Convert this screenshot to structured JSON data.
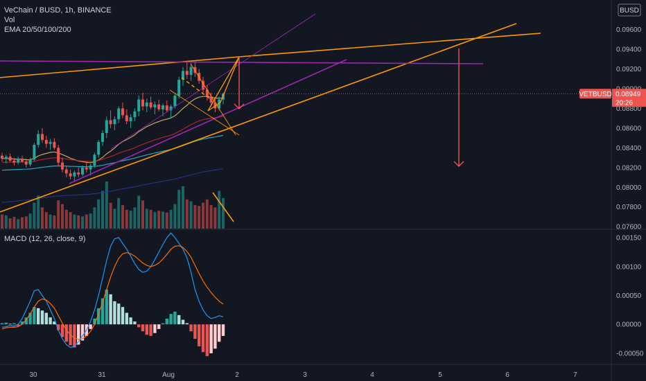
{
  "header": {
    "title": "VeChain / BUSD, 1h, BINANCE",
    "vol_label": "Vol",
    "ema_label": "EMA 20/50/100/200"
  },
  "currency_badge": "BUSD",
  "price_badge": {
    "symbol": "VETBUSD",
    "value": "0.08949",
    "countdown": "20:26"
  },
  "macd": {
    "label": "MACD (12, 26, close, 9)"
  },
  "colors": {
    "background": "#131722",
    "up": "#26a69a",
    "down": "#ef5350",
    "orange": "#ff9800",
    "magenta": "#9c27b0",
    "macd_line": "#2196f3",
    "signal_line": "#ff6d00",
    "ema20": "#e8c064",
    "ema50": "#c62828",
    "ema100": "#26c6da",
    "ema200": "#283593"
  },
  "chart_data": [
    {
      "type": "candlestick",
      "title": "",
      "y_ticks": [
        "0.09600",
        "0.09400",
        "0.09200",
        "0.09000",
        "0.08800",
        "0.08600",
        "0.08400",
        "0.08200",
        "0.08000",
        "0.07800",
        "0.07600"
      ],
      "ylim": [
        0.0758,
        0.099
      ],
      "x_ticks": [
        "30",
        "31",
        "Aug",
        "2",
        "3",
        "4",
        "5",
        "6",
        "7"
      ],
      "last_price": 0.08949,
      "candles": [
        [
          0.0832,
          0.0835,
          0.0826,
          0.0829
        ],
        [
          0.0829,
          0.0833,
          0.0824,
          0.0831
        ],
        [
          0.0831,
          0.0834,
          0.0826,
          0.0827
        ],
        [
          0.0827,
          0.083,
          0.0822,
          0.0825
        ],
        [
          0.0825,
          0.0831,
          0.0823,
          0.0829
        ],
        [
          0.0829,
          0.0832,
          0.0825,
          0.0826
        ],
        [
          0.0826,
          0.0829,
          0.082,
          0.0823
        ],
        [
          0.0823,
          0.083,
          0.0821,
          0.0828
        ],
        [
          0.0828,
          0.0845,
          0.0826,
          0.0843
        ],
        [
          0.0843,
          0.0858,
          0.084,
          0.0854
        ],
        [
          0.0854,
          0.086,
          0.0845,
          0.0848
        ],
        [
          0.0848,
          0.0852,
          0.084,
          0.0844
        ],
        [
          0.0844,
          0.0849,
          0.0838,
          0.0846
        ],
        [
          0.0846,
          0.085,
          0.0838,
          0.084
        ],
        [
          0.084,
          0.0843,
          0.0822,
          0.0825
        ],
        [
          0.0825,
          0.083,
          0.0815,
          0.0818
        ],
        [
          0.0818,
          0.0822,
          0.081,
          0.0814
        ],
        [
          0.0814,
          0.0818,
          0.0808,
          0.0811
        ],
        [
          0.0811,
          0.0817,
          0.0806,
          0.0815
        ],
        [
          0.0815,
          0.082,
          0.081,
          0.0813
        ],
        [
          0.0813,
          0.0822,
          0.0811,
          0.082
        ],
        [
          0.082,
          0.0826,
          0.0815,
          0.0818
        ],
        [
          0.0818,
          0.0824,
          0.0812,
          0.0822
        ],
        [
          0.0822,
          0.0835,
          0.082,
          0.0833
        ],
        [
          0.0833,
          0.0848,
          0.083,
          0.0846
        ],
        [
          0.0846,
          0.0858,
          0.0842,
          0.0855
        ],
        [
          0.0855,
          0.0872,
          0.085,
          0.0868
        ],
        [
          0.0868,
          0.0878,
          0.086,
          0.0864
        ],
        [
          0.0864,
          0.0872,
          0.0858,
          0.0869
        ],
        [
          0.0869,
          0.0882,
          0.0865,
          0.088
        ],
        [
          0.088,
          0.0886,
          0.087,
          0.0873
        ],
        [
          0.0873,
          0.0879,
          0.0864,
          0.0867
        ],
        [
          0.0867,
          0.0874,
          0.086,
          0.0871
        ],
        [
          0.0871,
          0.088,
          0.0867,
          0.0877
        ],
        [
          0.0877,
          0.0893,
          0.0872,
          0.0889
        ],
        [
          0.0889,
          0.0896,
          0.0878,
          0.0882
        ],
        [
          0.0882,
          0.089,
          0.0876,
          0.0886
        ],
        [
          0.0886,
          0.0892,
          0.0879,
          0.0881
        ],
        [
          0.0881,
          0.0887,
          0.0874,
          0.0884
        ],
        [
          0.0884,
          0.0889,
          0.0877,
          0.0879
        ],
        [
          0.0879,
          0.0885,
          0.0872,
          0.0883
        ],
        [
          0.0883,
          0.0888,
          0.0876,
          0.0878
        ],
        [
          0.0878,
          0.0884,
          0.087,
          0.0882
        ],
        [
          0.0882,
          0.0896,
          0.088,
          0.0893
        ],
        [
          0.0893,
          0.0912,
          0.089,
          0.0909
        ],
        [
          0.0909,
          0.0922,
          0.0903,
          0.0918
        ],
        [
          0.0918,
          0.0928,
          0.091,
          0.0914
        ],
        [
          0.0914,
          0.0926,
          0.0908,
          0.0922
        ],
        [
          0.0922,
          0.0927,
          0.0912,
          0.0916
        ],
        [
          0.0916,
          0.092,
          0.0905,
          0.0908
        ],
        [
          0.0908,
          0.0912,
          0.0896,
          0.0899
        ],
        [
          0.0899,
          0.0904,
          0.0888,
          0.0892
        ],
        [
          0.0892,
          0.0896,
          0.0882,
          0.0886
        ],
        [
          0.0886,
          0.089,
          0.0876,
          0.088
        ],
        [
          0.088,
          0.0892,
          0.0878,
          0.0889
        ],
        [
          0.0889,
          0.0896,
          0.0884,
          0.08949
        ]
      ],
      "volumes": [
        0.3,
        0.28,
        0.22,
        0.25,
        0.2,
        0.24,
        0.26,
        0.32,
        0.55,
        0.7,
        0.45,
        0.35,
        0.3,
        0.28,
        0.6,
        0.52,
        0.4,
        0.35,
        0.3,
        0.28,
        0.26,
        0.3,
        0.32,
        0.45,
        0.62,
        0.8,
        1.0,
        0.55,
        0.42,
        0.65,
        0.5,
        0.4,
        0.38,
        0.45,
        0.7,
        0.6,
        0.42,
        0.4,
        0.35,
        0.38,
        0.36,
        0.34,
        0.4,
        0.52,
        0.82,
        0.9,
        0.62,
        0.58,
        0.5,
        0.48,
        0.55,
        0.62,
        0.5,
        0.45,
        0.8,
        0.65
      ]
    },
    {
      "type": "macd",
      "title": "MACD (12, 26, close, 9)",
      "y_ticks": [
        "0.00150",
        "0.00100",
        "0.00050",
        "0.00000",
        "-0.00050"
      ],
      "ylim": [
        -0.00068,
        0.00162
      ],
      "histogram": [
        2e-05,
        3e-05,
        1e-05,
        2e-05,
        -3e-05,
        5e-05,
        0.00012,
        0.0002,
        0.0003,
        0.00028,
        0.00024,
        0.0002,
        0.00012,
        5e-05,
        -0.0001,
        -0.00022,
        -0.0003,
        -0.00036,
        -0.0004,
        -0.00035,
        -0.00028,
        -0.0002,
        -8e-05,
        0.0001,
        0.00028,
        0.00045,
        0.0006,
        0.00052,
        0.0004,
        0.00036,
        0.0003,
        0.0002,
        0.00012,
        5e-05,
        -5e-05,
        -0.00012,
        -0.00018,
        -0.0002,
        -0.00015,
        -8e-05,
        2e-05,
        0.0001,
        0.00018,
        0.00022,
        0.00016,
        8e-05,
        2e-05,
        -0.00012,
        -0.00025,
        -0.00038,
        -0.00048,
        -0.00055,
        -0.0005,
        -0.00042,
        -0.0003,
        -0.0002
      ],
      "macd_line": [
        -5e-05,
        -4e-05,
        -2e-05,
        -3e-05,
        0.0,
        0.0001,
        0.00025,
        0.0004,
        0.00058,
        0.0006,
        0.0005,
        0.0004,
        0.00025,
        0.0001,
        -0.0001,
        -0.00025,
        -0.00035,
        -0.0004,
        -0.00038,
        -0.0003,
        -0.0002,
        -0.0001,
        5e-05,
        0.00025,
        0.0005,
        0.0008,
        0.0011,
        0.00135,
        0.00148,
        0.0015,
        0.0014,
        0.0013,
        0.00118,
        0.00105,
        0.00095,
        0.0009,
        0.00092,
        0.001,
        0.00112,
        0.00125,
        0.00138,
        0.0015,
        0.00158,
        0.0015,
        0.0014,
        0.0013,
        0.00115,
        0.0009,
        0.0006,
        0.0004,
        0.00025,
        0.00015,
        0.0001,
        0.00012,
        0.00015,
        0.00013
      ],
      "signal_line": [
        -8e-05,
        -6e-05,
        -5e-05,
        -5e-05,
        -4e-05,
        0.0,
        8e-05,
        0.00018,
        0.0003,
        0.0004,
        0.00044,
        0.00042,
        0.00036,
        0.00028,
        0.00015,
        2e-05,
        -0.0001,
        -0.00018,
        -0.00024,
        -0.00026,
        -0.00025,
        -0.0002,
        -0.00012,
        0.0,
        0.00018,
        0.00038,
        0.0006,
        0.00082,
        0.001,
        0.00114,
        0.00122,
        0.00124,
        0.00122,
        0.00118,
        0.00112,
        0.00106,
        0.00102,
        0.001,
        0.00102,
        0.00106,
        0.00113,
        0.00121,
        0.0013,
        0.00135,
        0.00136,
        0.00133,
        0.00126,
        0.00116,
        0.00102,
        0.00088,
        0.00075,
        0.00064,
        0.00055,
        0.00047,
        0.0004,
        0.00035
      ]
    }
  ]
}
